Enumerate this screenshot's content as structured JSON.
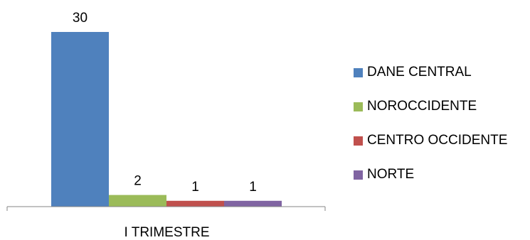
{
  "chart_data": {
    "type": "bar",
    "categories": [
      "I TRIMESTRE"
    ],
    "series": [
      {
        "name": "DANE CENTRAL",
        "values": [
          30
        ],
        "color": "#4F81BD"
      },
      {
        "name": "NOROCCIDENTE",
        "values": [
          2
        ],
        "color": "#9BBB59"
      },
      {
        "name": "CENTRO OCCIDENTE",
        "values": [
          1
        ],
        "color": "#C0504D"
      },
      {
        "name": "NORTE",
        "values": [
          1
        ],
        "color": "#8064A2"
      }
    ],
    "data_labels": [
      "30",
      "2",
      "1",
      "1"
    ],
    "ylim": [
      0,
      30
    ],
    "grid": false,
    "legend_position": "right"
  }
}
